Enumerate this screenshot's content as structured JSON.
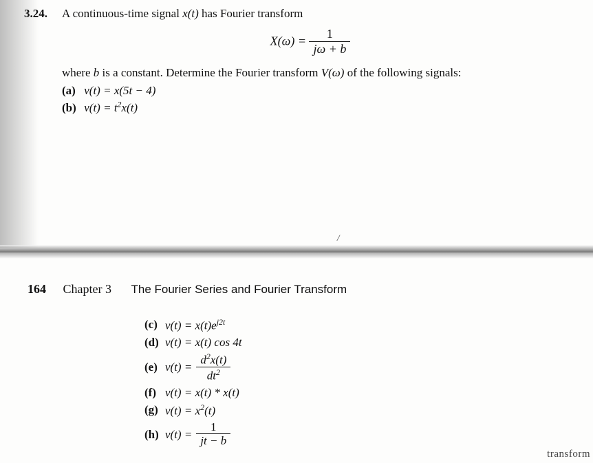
{
  "top": {
    "problem_number": "3.24.",
    "intro_pre": "A continuous-time signal ",
    "intro_sig": "x(t)",
    "intro_post": " has Fourier transform",
    "eq_lhs": "X(ω) =",
    "eq_num": "1",
    "eq_den": "jω + b",
    "body_pre": "where ",
    "body_b": "b",
    "body_mid": " is a constant. Determine the Fourier transform ",
    "body_V": "V(ω)",
    "body_post": " of the following signals:",
    "part_a_label": "(a)",
    "part_a": "v(t) = x(5t − 4)",
    "part_b_label": "(b)",
    "part_b_pre": "v(t) = t",
    "part_b_sup": "2",
    "part_b_post": "x(t)"
  },
  "bottom": {
    "page_number": "164",
    "chapter": "Chapter 3",
    "chapter_title": "The Fourier Series and Fourier Transform",
    "c_label": "(c)",
    "c_pre": "v(t) = x(t)e",
    "c_sup": "j2t",
    "d_label": "(d)",
    "d": "v(t) = x(t) cos 4t",
    "e_label": "(e)",
    "e_lhs": "v(t) =",
    "e_num_pre": "d",
    "e_num_sup": "2",
    "e_num_post": "x(t)",
    "e_den_pre": "dt",
    "e_den_sup": "2",
    "f_label": "(f)",
    "f": "v(t) = x(t) * x(t)",
    "g_label": "(g)",
    "g_pre": "v(t) = x",
    "g_sup": "2",
    "g_post": "(t)",
    "h_label": "(h)",
    "h_lhs": "v(t) =",
    "h_num": "1",
    "h_den": "jt − b",
    "footer_clip": "transform"
  }
}
